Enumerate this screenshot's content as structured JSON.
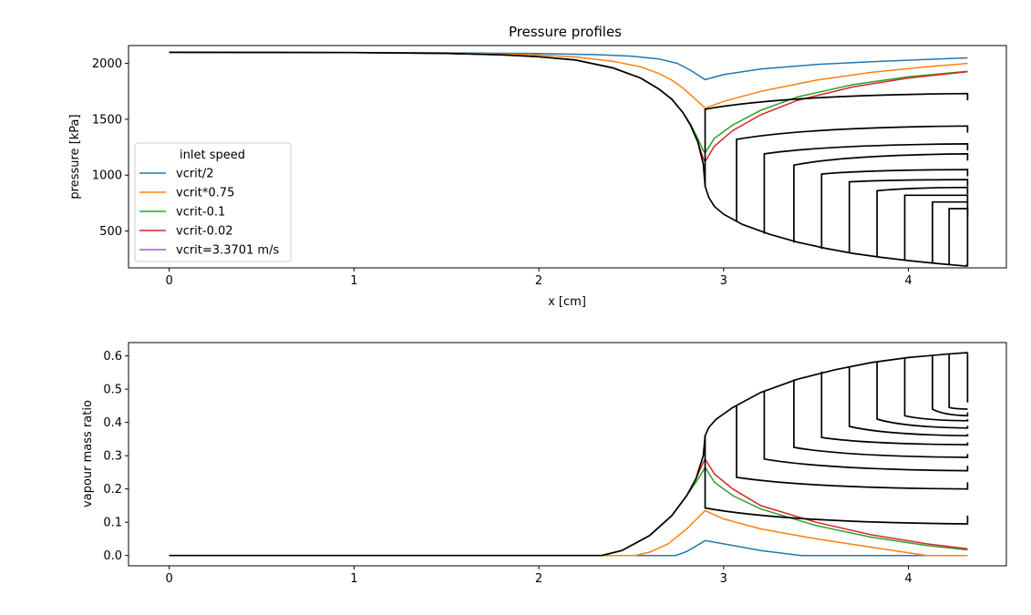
{
  "colors": {
    "vcrit_half": "#1f77b4",
    "vcrit_075": "#ff7f0e",
    "vcrit_m01": "#2ca02c",
    "vcrit_m002": "#d62728",
    "vcrit_eq": "#9467bd",
    "black_curves": "#000000"
  },
  "chart_data": [
    {
      "type": "line",
      "title": "Pressure profiles",
      "xlabel": "x [cm]",
      "ylabel": "pressure [kPa]",
      "xlim": [
        -0.22,
        4.53
      ],
      "ylim": [
        170,
        2160
      ],
      "xticks": [
        0,
        1,
        2,
        3,
        4
      ],
      "yticks": [
        500,
        1000,
        1500,
        2000
      ],
      "grid": false,
      "legend": {
        "title": "inlet speed",
        "placement": "lower-left",
        "entries": [
          "vcrit/2",
          "vcrit*0.75",
          "vcrit-0.1",
          "vcrit-0.02",
          "vcrit=3.3701 m/s"
        ]
      },
      "series": [
        {
          "name": "vcrit/2",
          "color_key": "vcrit_half",
          "x": [
            0,
            1.0,
            1.5,
            2.0,
            2.3,
            2.5,
            2.65,
            2.75,
            2.82,
            2.9,
            3.0,
            3.2,
            3.5,
            3.8,
            4.1,
            4.32
          ],
          "y": [
            2100,
            2098,
            2095,
            2088,
            2079,
            2065,
            2040,
            2000,
            1940,
            1855,
            1900,
            1950,
            1990,
            2015,
            2035,
            2050
          ]
        },
        {
          "name": "vcrit*0.75",
          "color_key": "vcrit_075",
          "x": [
            0,
            1.0,
            1.5,
            1.8,
            2.0,
            2.2,
            2.4,
            2.55,
            2.65,
            2.72,
            2.78,
            2.84,
            2.9,
            3.0,
            3.2,
            3.5,
            3.8,
            4.1,
            4.32
          ],
          "y": [
            2100,
            2097,
            2092,
            2085,
            2075,
            2058,
            2020,
            1970,
            1910,
            1850,
            1780,
            1690,
            1600,
            1660,
            1750,
            1850,
            1920,
            1970,
            2000
          ]
        },
        {
          "name": "vcrit-0.1",
          "color_key": "vcrit_m01",
          "x": [
            0,
            1.0,
            1.5,
            1.8,
            2.0,
            2.2,
            2.4,
            2.55,
            2.65,
            2.72,
            2.78,
            2.82,
            2.86,
            2.89,
            2.9,
            2.95,
            3.05,
            3.2,
            3.4,
            3.7,
            4.0,
            4.32
          ],
          "y": [
            2100,
            2097,
            2090,
            2077,
            2060,
            2030,
            1960,
            1870,
            1770,
            1680,
            1560,
            1460,
            1330,
            1220,
            1200,
            1330,
            1450,
            1580,
            1700,
            1810,
            1880,
            1930
          ]
        },
        {
          "name": "vcrit-0.02",
          "color_key": "vcrit_m002",
          "x": [
            0,
            1.0,
            1.5,
            1.8,
            2.0,
            2.2,
            2.4,
            2.55,
            2.65,
            2.72,
            2.78,
            2.82,
            2.86,
            2.89,
            2.9,
            2.95,
            3.05,
            3.2,
            3.4,
            3.7,
            4.0,
            4.32
          ],
          "y": [
            2100,
            2097,
            2090,
            2077,
            2060,
            2030,
            1960,
            1870,
            1770,
            1680,
            1560,
            1450,
            1300,
            1150,
            1120,
            1260,
            1400,
            1540,
            1670,
            1790,
            1870,
            1925
          ]
        },
        {
          "name": "vcrit=3.3701 m/s",
          "color_key": "vcrit_eq",
          "x": [
            4.31,
            4.32
          ],
          "y": [
            200,
            200
          ]
        }
      ],
      "black_curves": {
        "base": {
          "x": [
            0,
            1.0,
            1.5,
            1.8,
            2.0,
            2.2,
            2.4,
            2.55,
            2.65,
            2.72,
            2.78,
            2.82,
            2.86,
            2.89,
            2.9,
            2.92,
            2.95,
            3.0,
            3.1,
            3.25,
            3.4,
            3.55,
            3.7,
            3.85,
            4.0,
            4.15,
            4.32
          ],
          "y": [
            2100,
            2097,
            2090,
            2077,
            2060,
            2030,
            1960,
            1870,
            1770,
            1680,
            1560,
            1450,
            1300,
            1100,
            900,
            800,
            720,
            650,
            560,
            470,
            400,
            345,
            300,
            265,
            235,
            210,
            185
          ]
        },
        "branch_x": [
          2.9,
          3.07,
          3.22,
          3.38,
          3.53,
          3.68,
          3.83,
          3.98,
          4.13,
          4.22,
          4.32
        ],
        "branch_bottom": [
          900,
          590,
          475,
          395,
          340,
          300,
          268,
          240,
          215,
          202,
          185
        ],
        "branch_top_start": [
          1590,
          1320,
          1190,
          1090,
          1010,
          940,
          860,
          820,
          760,
          700,
          700
        ],
        "branch_top_end": [
          1730,
          1440,
          1280,
          1190,
          1050,
          960,
          890,
          820,
          760,
          700,
          700
        ]
      }
    },
    {
      "type": "line",
      "title": "",
      "xlabel": "",
      "ylabel": "vapour mass ratio",
      "xlim": [
        -0.22,
        4.53
      ],
      "ylim": [
        -0.031,
        0.64
      ],
      "xticks": [
        0,
        1,
        2,
        3,
        4
      ],
      "yticks": [
        0.0,
        0.1,
        0.2,
        0.3,
        0.4,
        0.5,
        0.6
      ],
      "grid": false,
      "series": [
        {
          "name": "vcrit/2",
          "color_key": "vcrit_half",
          "x": [
            0,
            2.5,
            2.74,
            2.8,
            2.85,
            2.9,
            3.0,
            3.2,
            3.42,
            4.32
          ],
          "y": [
            0,
            0,
            0,
            0.012,
            0.028,
            0.045,
            0.035,
            0.015,
            0,
            0
          ]
        },
        {
          "name": "vcrit*0.75",
          "color_key": "vcrit_075",
          "x": [
            0,
            2.52,
            2.6,
            2.7,
            2.8,
            2.9,
            3.0,
            3.2,
            3.5,
            3.8,
            4.1,
            4.32
          ],
          "y": [
            0,
            0,
            0.01,
            0.035,
            0.08,
            0.135,
            0.11,
            0.08,
            0.05,
            0.025,
            0,
            0
          ]
        },
        {
          "name": "vcrit-0.1",
          "color_key": "vcrit_m01",
          "x": [
            0,
            2.34,
            2.45,
            2.6,
            2.72,
            2.8,
            2.85,
            2.89,
            2.9,
            2.95,
            3.05,
            3.2,
            3.5,
            3.8,
            4.1,
            4.32
          ],
          "y": [
            0,
            0,
            0.015,
            0.06,
            0.12,
            0.18,
            0.22,
            0.255,
            0.265,
            0.22,
            0.18,
            0.14,
            0.09,
            0.055,
            0.03,
            0.017
          ]
        },
        {
          "name": "vcrit-0.02",
          "color_key": "vcrit_m002",
          "x": [
            0,
            2.34,
            2.45,
            2.6,
            2.72,
            2.8,
            2.85,
            2.89,
            2.9,
            2.95,
            3.05,
            3.2,
            3.5,
            3.8,
            4.1,
            4.32
          ],
          "y": [
            0,
            0,
            0.015,
            0.06,
            0.12,
            0.18,
            0.23,
            0.28,
            0.29,
            0.245,
            0.2,
            0.15,
            0.1,
            0.062,
            0.035,
            0.02
          ]
        },
        {
          "name": "vcrit=3.3701 m/s",
          "color_key": "vcrit_eq",
          "x": [
            4.31,
            4.32
          ],
          "y": [
            0.61,
            0.61
          ]
        }
      ],
      "black_curves": {
        "base": {
          "x": [
            0,
            2.34,
            2.45,
            2.6,
            2.72,
            2.8,
            2.85,
            2.89,
            2.9,
            2.92,
            2.96,
            3.05,
            3.2,
            3.4,
            3.6,
            3.8,
            4.0,
            4.2,
            4.32
          ],
          "y": [
            0,
            0,
            0.015,
            0.06,
            0.12,
            0.18,
            0.23,
            0.3,
            0.36,
            0.385,
            0.41,
            0.445,
            0.49,
            0.53,
            0.558,
            0.58,
            0.595,
            0.605,
            0.61
          ]
        },
        "branch_x": [
          2.9,
          3.07,
          3.22,
          3.38,
          3.53,
          3.68,
          3.83,
          3.98,
          4.13,
          4.22,
          4.32
        ],
        "branch_top": [
          0.36,
          0.45,
          0.495,
          0.53,
          0.553,
          0.568,
          0.58,
          0.592,
          0.6,
          0.605,
          0.61
        ],
        "branch_bottom_start": [
          0.143,
          0.235,
          0.29,
          0.325,
          0.355,
          0.388,
          0.41,
          0.42,
          0.44,
          0.445,
          0.46
        ],
        "branch_bottom_end": [
          0.095,
          0.2,
          0.255,
          0.295,
          0.333,
          0.36,
          0.383,
          0.405,
          0.42,
          0.44,
          0.46
        ],
        "branch_tails": [
          0.12,
          0.22,
          0.27,
          0.305,
          0.34,
          0.365,
          0.39,
          0.41,
          0.43,
          0.44,
          0.46
        ]
      }
    }
  ]
}
